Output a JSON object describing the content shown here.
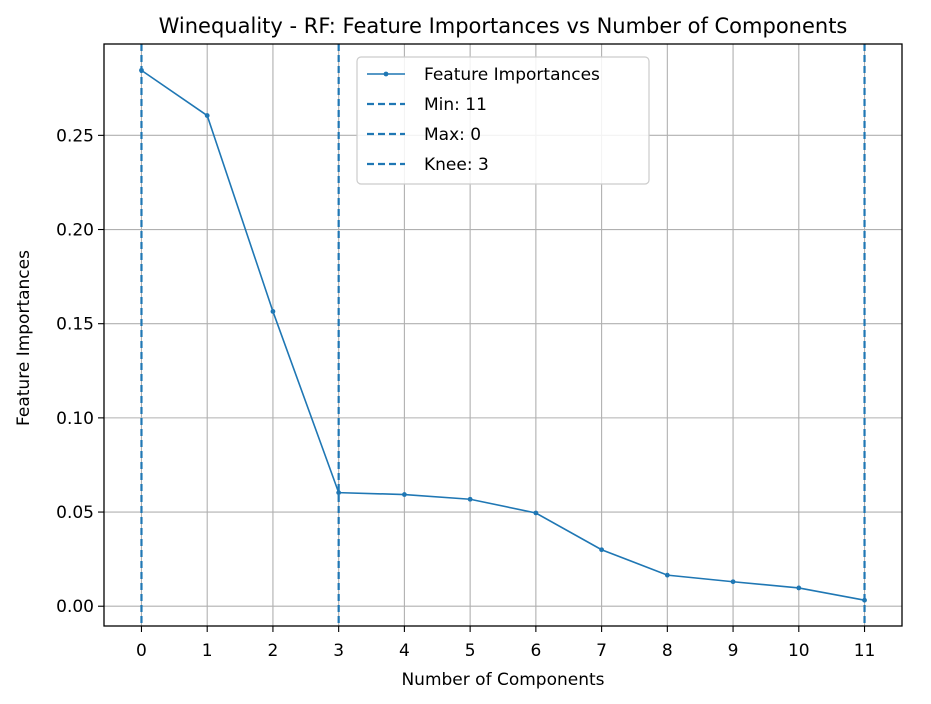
{
  "chart_data": {
    "type": "line",
    "title": "Winequality - RF: Feature Importances vs Number of Components",
    "xlabel": "Number of Components",
    "ylabel": "Feature Importances",
    "xlim": [
      -0.57,
      11.57
    ],
    "ylim": [
      -0.0105,
      0.2985
    ],
    "xticks": [
      0,
      1,
      2,
      3,
      4,
      5,
      6,
      7,
      8,
      9,
      10,
      11
    ],
    "yticks": [
      0.0,
      0.05,
      0.1,
      0.15,
      0.2,
      0.25
    ],
    "ytick_labels": [
      "0.00",
      "0.05",
      "0.10",
      "0.15",
      "0.20",
      "0.25"
    ],
    "grid": true,
    "legend_position": "top-center",
    "series": [
      {
        "name": "Feature Importances",
        "color": "#1f77b4",
        "x": [
          0,
          1,
          2,
          3,
          4,
          5,
          6,
          7,
          8,
          9,
          10,
          11
        ],
        "y": [
          0.2845,
          0.2605,
          0.1565,
          0.0603,
          0.0593,
          0.0568,
          0.0495,
          0.03,
          0.0165,
          0.013,
          0.0097,
          0.0032
        ]
      }
    ],
    "vlines": [
      {
        "name": "Min: 11",
        "x": 11,
        "color": "#1f77b4"
      },
      {
        "name": "Max: 0",
        "x": 0,
        "color": "#1f77b4"
      },
      {
        "name": "Knee: 3",
        "x": 3,
        "color": "#1f77b4"
      }
    ]
  }
}
